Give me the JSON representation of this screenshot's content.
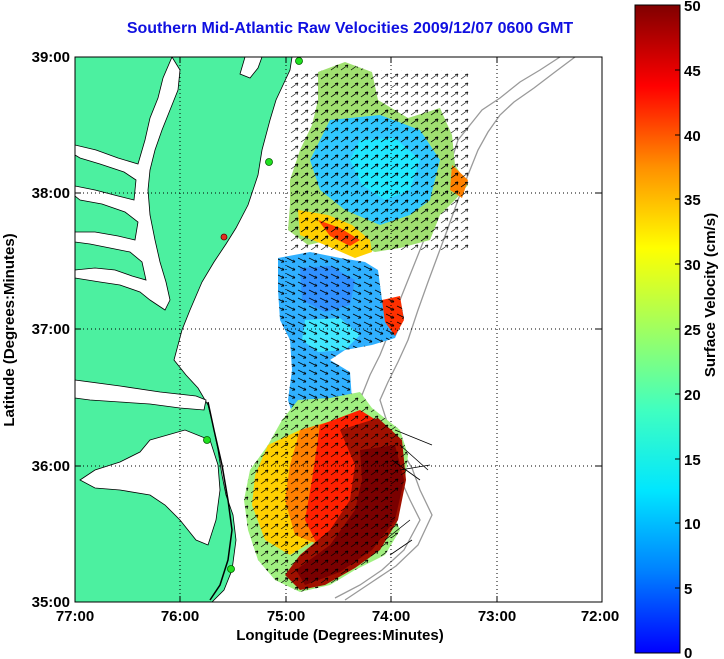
{
  "title": "Southern Mid-Atlantic Raw Velocities 2009/12/07 0600 GMT",
  "x_axis": {
    "label": "Longitude (Degrees:Minutes)",
    "ticks": [
      "77:00",
      "76:00",
      "75:00",
      "74:00",
      "73:00",
      "72:00"
    ]
  },
  "y_axis": {
    "label": "Latitude (Degrees:Minutes)",
    "ticks": [
      "39:00",
      "38:00",
      "37:00",
      "36:00",
      "35:00"
    ]
  },
  "colorbar": {
    "label": "Surface Velocity (cm/s)",
    "ticks": [
      "50",
      "45",
      "40",
      "35",
      "30",
      "25",
      "20",
      "15",
      "10",
      "5",
      "0"
    ],
    "min": 0,
    "max": 50
  },
  "colors": {
    "land": "#4cf0a0",
    "coastline": "#000000",
    "bathymetry": "#9a9a9a",
    "title": "#1010e0",
    "station_green": "#20e020",
    "station_red": "#e03020"
  }
}
